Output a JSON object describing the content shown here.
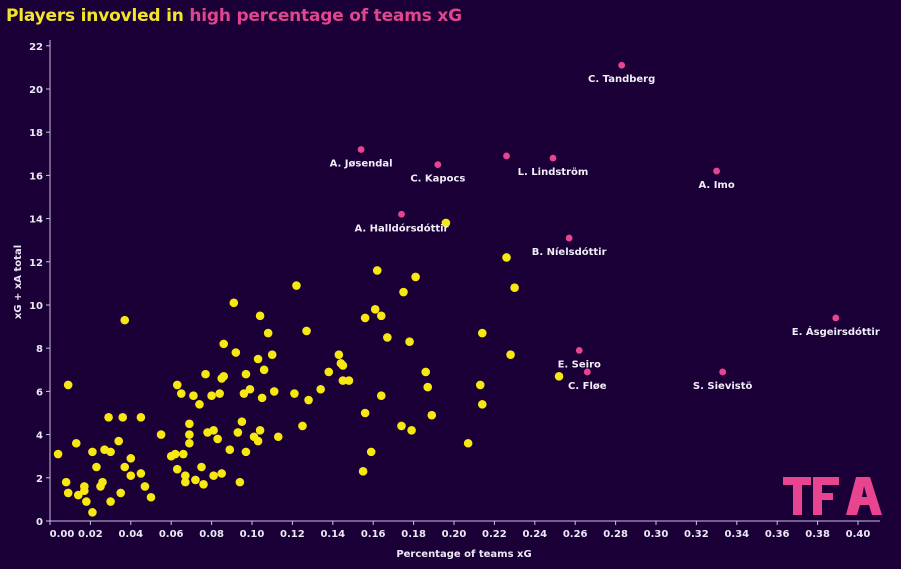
{
  "chart_data": {
    "type": "scatter",
    "title_part1": "Players invovled in ",
    "title_part2": "high percentage of teams xG",
    "xlabel": "Percentage of teams xG",
    "ylabel": "xG + xA total",
    "xlim": [
      0,
      0.41
    ],
    "ylim": [
      0,
      22.3
    ],
    "xticks": [
      "0.00",
      "0.02",
      "0.04",
      "0.06",
      "0.08",
      "0.10",
      "0.12",
      "0.14",
      "0.16",
      "0.18",
      "0.20",
      "0.22",
      "0.24",
      "0.26",
      "0.28",
      "0.30",
      "0.32",
      "0.34",
      "0.36",
      "0.38",
      "0.40"
    ],
    "yticks": [
      "0",
      "2",
      "4",
      "6",
      "8",
      "10",
      "12",
      "14",
      "16",
      "18",
      "20",
      "22"
    ],
    "grid": false,
    "colors": {
      "background": "#1a0036",
      "other_players": "#f7e812",
      "highlighted": "#e8448f",
      "title_yellow": "#f2e52a",
      "title_pink": "#e0458e"
    },
    "logo": "TFA",
    "series": [
      {
        "color": "#f7e812",
        "points": [
          [
            0.004,
            3.1
          ],
          [
            0.009,
            6.3
          ],
          [
            0.008,
            1.8
          ],
          [
            0.009,
            1.3
          ],
          [
            0.013,
            3.6
          ],
          [
            0.014,
            1.2
          ],
          [
            0.017,
            1.6
          ],
          [
            0.017,
            1.4
          ],
          [
            0.018,
            0.9
          ],
          [
            0.021,
            0.4
          ],
          [
            0.021,
            3.2
          ],
          [
            0.023,
            2.5
          ],
          [
            0.025,
            1.6
          ],
          [
            0.026,
            1.8
          ],
          [
            0.027,
            3.3
          ],
          [
            0.029,
            4.8
          ],
          [
            0.03,
            0.9
          ],
          [
            0.03,
            3.2
          ],
          [
            0.034,
            3.7
          ],
          [
            0.035,
            1.3
          ],
          [
            0.036,
            4.8
          ],
          [
            0.037,
            9.3
          ],
          [
            0.037,
            2.5
          ],
          [
            0.04,
            2.1
          ],
          [
            0.04,
            2.9
          ],
          [
            0.045,
            4.8
          ],
          [
            0.045,
            2.2
          ],
          [
            0.047,
            1.6
          ],
          [
            0.05,
            1.1
          ],
          [
            0.055,
            4.0
          ],
          [
            0.06,
            3.0
          ],
          [
            0.062,
            3.1
          ],
          [
            0.063,
            2.4
          ],
          [
            0.063,
            6.3
          ],
          [
            0.065,
            5.9
          ],
          [
            0.066,
            3.1
          ],
          [
            0.067,
            2.1
          ],
          [
            0.067,
            1.8
          ],
          [
            0.069,
            4.0
          ],
          [
            0.069,
            3.6
          ],
          [
            0.069,
            4.5
          ],
          [
            0.071,
            5.8
          ],
          [
            0.072,
            1.9
          ],
          [
            0.074,
            5.4
          ],
          [
            0.075,
            2.5
          ],
          [
            0.076,
            1.7
          ],
          [
            0.077,
            6.8
          ],
          [
            0.078,
            4.1
          ],
          [
            0.08,
            5.8
          ],
          [
            0.081,
            4.2
          ],
          [
            0.081,
            2.1
          ],
          [
            0.083,
            3.8
          ],
          [
            0.084,
            5.9
          ],
          [
            0.085,
            2.2
          ],
          [
            0.085,
            6.6
          ],
          [
            0.086,
            6.7
          ],
          [
            0.086,
            8.2
          ],
          [
            0.089,
            3.3
          ],
          [
            0.091,
            10.1
          ],
          [
            0.092,
            7.8
          ],
          [
            0.094,
            1.8
          ],
          [
            0.093,
            4.1
          ],
          [
            0.095,
            4.6
          ],
          [
            0.096,
            5.9
          ],
          [
            0.097,
            6.8
          ],
          [
            0.097,
            3.2
          ],
          [
            0.099,
            6.1
          ],
          [
            0.101,
            3.9
          ],
          [
            0.103,
            7.5
          ],
          [
            0.103,
            3.7
          ],
          [
            0.104,
            9.5
          ],
          [
            0.104,
            4.2
          ],
          [
            0.105,
            5.7
          ],
          [
            0.106,
            7.0
          ],
          [
            0.108,
            8.7
          ],
          [
            0.11,
            7.7
          ],
          [
            0.111,
            6.0
          ],
          [
            0.113,
            3.9
          ],
          [
            0.121,
            5.9
          ],
          [
            0.122,
            10.9
          ],
          [
            0.125,
            4.4
          ],
          [
            0.127,
            8.8
          ],
          [
            0.128,
            5.6
          ],
          [
            0.134,
            6.1
          ],
          [
            0.138,
            6.9
          ],
          [
            0.143,
            7.7
          ],
          [
            0.144,
            7.3
          ],
          [
            0.145,
            7.2
          ],
          [
            0.145,
            6.5
          ],
          [
            0.148,
            6.5
          ],
          [
            0.155,
            2.3
          ],
          [
            0.156,
            9.4
          ],
          [
            0.156,
            5.0
          ],
          [
            0.159,
            3.2
          ],
          [
            0.161,
            9.8
          ],
          [
            0.162,
            11.6
          ],
          [
            0.164,
            9.5
          ],
          [
            0.164,
            5.8
          ],
          [
            0.167,
            8.5
          ],
          [
            0.174,
            4.4
          ],
          [
            0.175,
            10.6
          ],
          [
            0.178,
            8.3
          ],
          [
            0.179,
            4.2
          ],
          [
            0.181,
            11.3
          ],
          [
            0.186,
            6.9
          ],
          [
            0.187,
            6.2
          ],
          [
            0.189,
            4.9
          ],
          [
            0.196,
            13.8
          ],
          [
            0.207,
            3.6
          ],
          [
            0.213,
            6.3
          ],
          [
            0.214,
            5.4
          ],
          [
            0.214,
            8.7
          ],
          [
            0.226,
            12.2
          ],
          [
            0.228,
            7.7
          ],
          [
            0.23,
            10.8
          ],
          [
            0.252,
            6.7
          ]
        ]
      },
      {
        "color": "#e8448f",
        "points": [
          {
            "x": 0.283,
            "y": 21.1,
            "label": "C. Tandberg"
          },
          {
            "x": 0.154,
            "y": 17.2,
            "label": "A. Jøsendal"
          },
          {
            "x": 0.192,
            "y": 16.5,
            "label": "C. Kapocs"
          },
          {
            "x": 0.226,
            "y": 16.9,
            "label": ""
          },
          {
            "x": 0.249,
            "y": 16.8,
            "label": "L. Lindström"
          },
          {
            "x": 0.33,
            "y": 16.2,
            "label": "A. Imo"
          },
          {
            "x": 0.174,
            "y": 14.2,
            "label": "A. Halldórsdóttir"
          },
          {
            "x": 0.257,
            "y": 13.1,
            "label": "B. Níelsdóttir"
          },
          {
            "x": 0.389,
            "y": 9.4,
            "label": "E. Ásgeirsdóttir"
          },
          {
            "x": 0.262,
            "y": 7.9,
            "label": "E. Seiro"
          },
          {
            "x": 0.266,
            "y": 6.9,
            "label": "C. Fløe"
          },
          {
            "x": 0.333,
            "y": 6.9,
            "label": "S. Sievistö"
          }
        ]
      }
    ]
  }
}
